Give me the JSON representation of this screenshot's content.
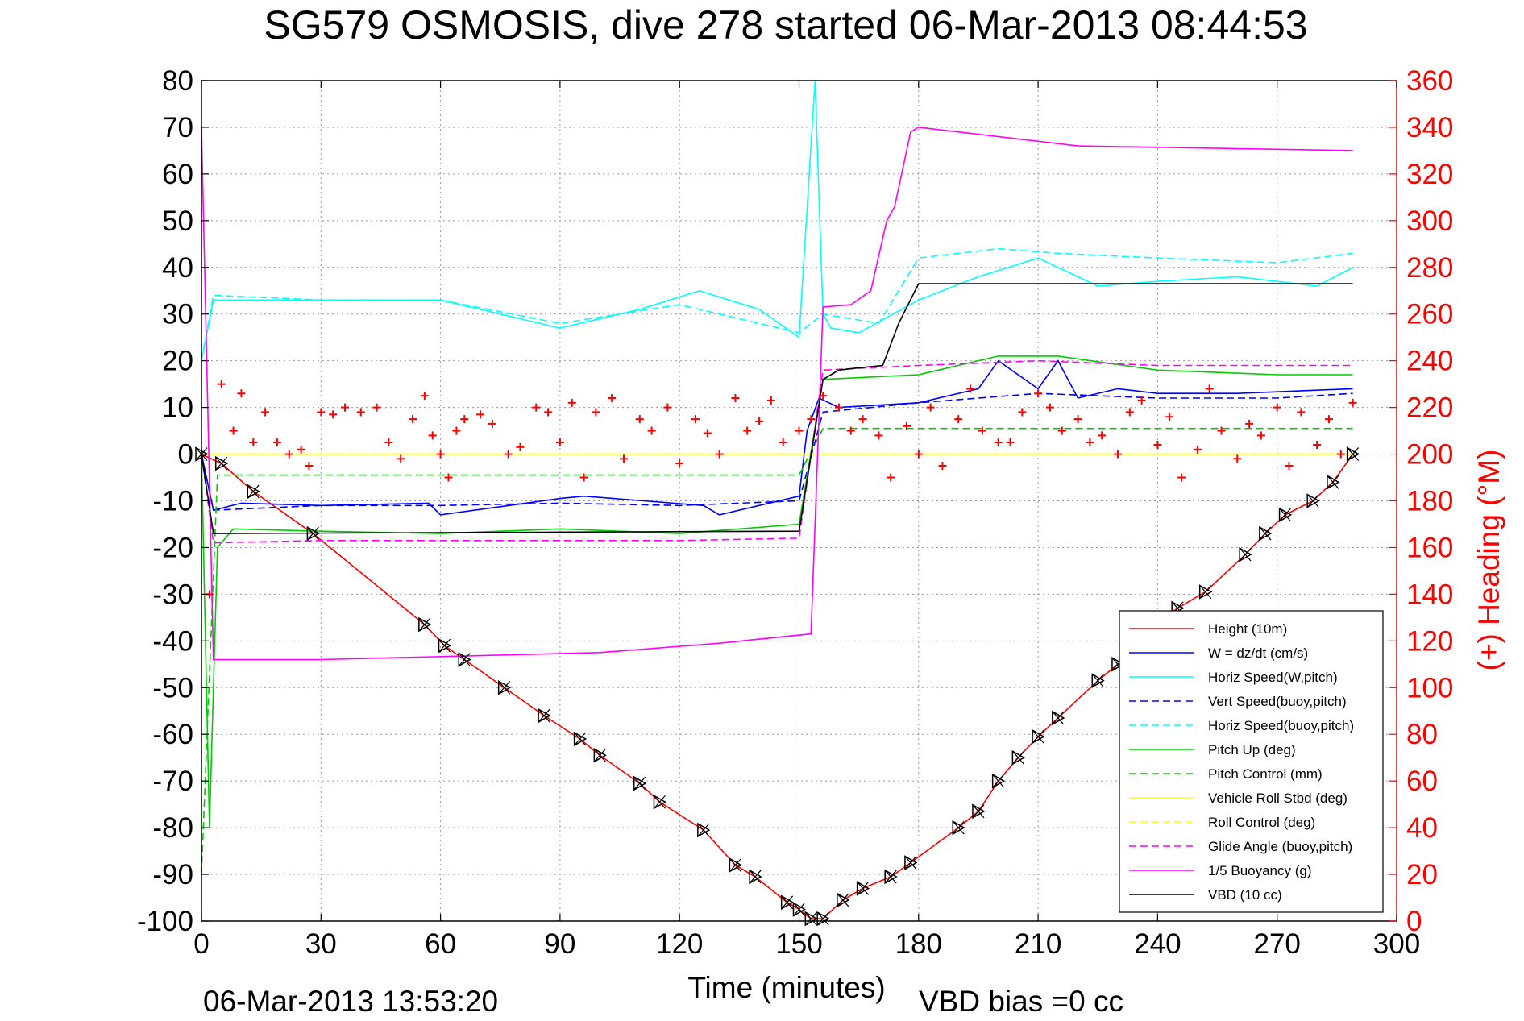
{
  "chart_data": {
    "type": "line",
    "title": "SG579 OSMOSIS, dive 278 started 06-Mar-2013 08:44:53",
    "xlabel": "Time (minutes)",
    "ylabel_right": "(+) Heading (°M)",
    "footer_left": "06-Mar-2013 13:53:20",
    "footer_right": "VBD bias =0 cc",
    "xlim": [
      0,
      300
    ],
    "ylim": [
      -100,
      80
    ],
    "ylim_right": [
      0,
      360
    ],
    "xticks": [
      0,
      30,
      60,
      90,
      120,
      150,
      180,
      210,
      240,
      270,
      300
    ],
    "yticks": [
      -100,
      -90,
      -80,
      -70,
      -60,
      -50,
      -40,
      -30,
      -20,
      -10,
      0,
      10,
      20,
      30,
      40,
      50,
      60,
      70,
      80
    ],
    "yticks_right": [
      0,
      20,
      40,
      60,
      80,
      100,
      120,
      140,
      160,
      180,
      200,
      220,
      240,
      260,
      280,
      300,
      320,
      340,
      360
    ],
    "grid": true,
    "legend_position": "bottom-right",
    "series": [
      {
        "name": "Height (10m)",
        "color": "#ff0000",
        "style": "solid",
        "x": [
          0,
          5,
          13,
          28,
          56,
          61,
          66,
          76,
          86,
          95,
          100,
          110,
          115,
          126,
          134,
          139,
          147,
          150,
          153,
          156,
          161,
          166,
          173,
          178,
          190,
          195,
          200,
          205,
          210,
          215,
          225,
          230,
          240,
          245,
          252,
          262,
          267,
          272,
          279,
          284,
          289
        ],
        "values": [
          0,
          -2,
          -8,
          -17,
          -36.5,
          -41,
          -44,
          -50,
          -56,
          -61,
          -64.5,
          -70.5,
          -74.5,
          -80.5,
          -88,
          -90.5,
          -96,
          -97.5,
          -99.5,
          -99.5,
          -95.5,
          -93,
          -90.5,
          -87.5,
          -80,
          -76.5,
          -70,
          -65,
          -60.5,
          -56.5,
          -48.5,
          -45,
          -36,
          -33,
          -29.5,
          -21.5,
          -17,
          -13,
          -10,
          -6,
          0
        ]
      },
      {
        "name": "W = dz/dt (cm/s)",
        "color": "#0000ff",
        "style": "solid",
        "x": [
          0,
          3,
          10,
          30,
          57,
          60,
          90,
          96,
          126,
          130,
          150,
          152,
          155,
          160,
          180,
          195,
          200,
          210,
          215,
          220,
          230,
          240,
          260,
          289
        ],
        "values": [
          0,
          -12,
          -10.5,
          -11,
          -10.5,
          -13,
          -9.5,
          -9,
          -11,
          -13,
          -9,
          5,
          12,
          10,
          11,
          14,
          20,
          14,
          20,
          12,
          14,
          13,
          13,
          14
        ]
      },
      {
        "name": "Horiz Speed(W,pitch)",
        "color": "#00ffff",
        "style": "solid",
        "x": [
          0,
          3,
          20,
          60,
          70,
          90,
          110,
          125,
          140,
          150,
          154,
          156,
          158,
          165,
          180,
          195,
          210,
          225,
          240,
          260,
          280,
          289
        ],
        "values": [
          20,
          33,
          33,
          33,
          31,
          27,
          31,
          35,
          31,
          25,
          80,
          30,
          27,
          26,
          33,
          38,
          42,
          36,
          37,
          38,
          36,
          40
        ]
      },
      {
        "name": "Vert Speed(buoy,pitch)",
        "color": "#0000ff",
        "style": "dashed",
        "x": [
          0,
          3,
          30,
          60,
          90,
          120,
          150,
          156,
          180,
          210,
          240,
          270,
          289
        ],
        "values": [
          0,
          -12,
          -11,
          -11,
          -10.5,
          -11,
          -10,
          9,
          11,
          13,
          12,
          12,
          13
        ]
      },
      {
        "name": "Horiz Speed(buoy,pitch)",
        "color": "#00ffff",
        "style": "dashed",
        "x": [
          0,
          3,
          30,
          60,
          90,
          120,
          150,
          156,
          170,
          180,
          200,
          215,
          240,
          270,
          289
        ],
        "values": [
          20,
          34,
          33,
          33,
          28,
          32,
          26,
          30,
          28,
          42,
          44,
          43,
          42,
          41,
          43
        ]
      },
      {
        "name": "Pitch Up (deg)",
        "color": "#00cc00",
        "style": "solid",
        "x": [
          0,
          2,
          4,
          8,
          30,
          60,
          90,
          120,
          150,
          156,
          180,
          200,
          215,
          240,
          270,
          289
        ],
        "values": [
          0,
          -80,
          -20,
          -16,
          -16.5,
          -17,
          -16,
          -17,
          -15,
          16,
          17,
          21,
          21,
          18,
          17,
          17
        ]
      },
      {
        "name": "Pitch Control (mm)",
        "color": "#00cc00",
        "style": "dashed",
        "x": [
          0,
          4,
          150,
          156,
          289
        ],
        "values": [
          -90,
          -4.5,
          -4.5,
          5.5,
          5.5
        ]
      },
      {
        "name": "Vehicle Roll Stbd (deg)",
        "color": "#ffff00",
        "style": "solid",
        "x": [
          0,
          10,
          40,
          80,
          120,
          150,
          156,
          200,
          240,
          289
        ],
        "values": [
          0,
          0,
          0,
          0,
          0,
          0,
          0,
          0,
          0,
          0
        ]
      },
      {
        "name": "Roll Control (deg)",
        "color": "#ffff00",
        "style": "dashed",
        "x": [
          0,
          289
        ],
        "values": [
          0,
          0
        ]
      },
      {
        "name": "Glide Angle (buoy,pitch)",
        "color": "#ff00ff",
        "style": "dashed",
        "x": [
          0,
          3,
          30,
          60,
          90,
          120,
          150,
          156,
          180,
          210,
          240,
          270,
          289
        ],
        "values": [
          0,
          -19,
          -18.5,
          -18.5,
          -18.5,
          -18.5,
          -18,
          18,
          19,
          20,
          19,
          19,
          19
        ]
      },
      {
        "name": "1/5 Buoyancy (g)",
        "color": "#ff00ff",
        "style": "solid",
        "x": [
          0,
          3,
          30,
          100,
          130,
          153,
          156,
          163,
          168,
          172,
          174,
          178,
          180,
          220,
          289
        ],
        "values": [
          70,
          -44,
          -44,
          -42.5,
          -40.5,
          -38.5,
          31.5,
          32,
          35,
          50,
          53,
          69,
          70,
          66,
          65
        ]
      },
      {
        "name": "VBD (10 cc)",
        "color": "#000000",
        "style": "solid",
        "x": [
          0,
          3,
          150,
          156,
          160,
          165,
          171,
          175,
          180,
          289
        ],
        "values": [
          0,
          -17,
          -16.5,
          16,
          18,
          18.5,
          19,
          28,
          36.5,
          36.5
        ]
      }
    ],
    "heading_series": {
      "axis": "right",
      "color": "#ff0000",
      "marker": "+",
      "x": [
        2,
        5,
        8,
        10,
        13,
        16,
        19,
        22,
        25,
        27,
        30,
        33,
        36,
        40,
        44,
        47,
        50,
        53,
        56,
        58,
        60,
        62,
        64,
        66,
        70,
        73,
        77,
        80,
        84,
        87,
        90,
        93,
        96,
        99,
        103,
        106,
        110,
        113,
        117,
        120,
        124,
        127,
        130,
        134,
        137,
        140,
        143,
        146,
        150,
        153,
        156,
        160,
        163,
        166,
        170,
        173,
        177,
        180,
        183,
        186,
        190,
        193,
        196,
        200,
        203,
        206,
        210,
        213,
        216,
        220,
        223,
        226,
        230,
        233,
        236,
        240,
        243,
        246,
        250,
        253,
        256,
        260,
        263,
        266,
        270,
        273,
        276,
        280,
        283,
        286,
        289
      ],
      "values": [
        140,
        230,
        210,
        226,
        205,
        218,
        205,
        200,
        202,
        195,
        218,
        217,
        220,
        218,
        220,
        205,
        198,
        215,
        225,
        208,
        200,
        190,
        210,
        215,
        217,
        213,
        200,
        203,
        220,
        218,
        205,
        222,
        190,
        218,
        224,
        198,
        215,
        210,
        220,
        196,
        215,
        209,
        200,
        224,
        210,
        214,
        223,
        205,
        210,
        215,
        225,
        220,
        210,
        215,
        208,
        190,
        212,
        200,
        220,
        195,
        215,
        228,
        210,
        205,
        205,
        218,
        226,
        220,
        210,
        215,
        205,
        208,
        200,
        218,
        223,
        204,
        216,
        190,
        202,
        228,
        210,
        198,
        213,
        208,
        220,
        195,
        218,
        204,
        215,
        200,
        222
      ]
    },
    "markers_series": {
      "marker": "triangle-x",
      "color": "#000000",
      "note": "pitch/roll motor events along Height trace"
    }
  }
}
